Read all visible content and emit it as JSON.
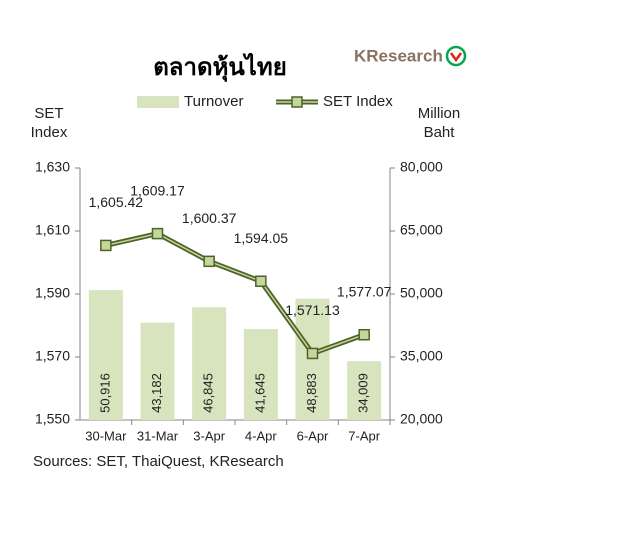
{
  "chart_data": {
    "type": "combo",
    "title": "ตลาดหุ้นไทย",
    "brand": "KResearch",
    "ylabel": "SET Index",
    "y2label": "Million Baht",
    "source": "Sources: SET, ThaiQuest, KResearch",
    "categories": [
      "30-Mar",
      "31-Mar",
      "3-Apr",
      "4-Apr",
      "6-Apr",
      "7-Apr"
    ],
    "series": [
      {
        "name": "Turnover",
        "type": "bar",
        "axis": "y2",
        "color": "#d7e4bd",
        "values": [
          50916,
          43182,
          46845,
          41645,
          48883,
          34009
        ],
        "value_labels": [
          "50,916",
          "43,182",
          "46,845",
          "41,645",
          "48,883",
          "34,009"
        ]
      },
      {
        "name": "SET Index",
        "type": "line",
        "color": "#4f6228",
        "marker_color": "#c3d69b",
        "values": [
          1605.42,
          1609.17,
          1600.37,
          1594.05,
          1571.13,
          1577.07
        ],
        "value_labels": [
          "1,605.42",
          "1,609.17",
          "1,600.37",
          "1,594.05",
          "1,571.13",
          "1,577.07"
        ]
      }
    ],
    "ylim": [
      1550,
      1630
    ],
    "yticks": [
      {
        "value": 1550,
        "label": "1,550"
      },
      {
        "value": 1570,
        "label": "1,570"
      },
      {
        "value": 1590,
        "label": "1,590"
      },
      {
        "value": 1610,
        "label": "1,610"
      },
      {
        "value": 1630,
        "label": "1,630"
      }
    ],
    "y2lim": [
      20000,
      80000
    ],
    "y2ticks": [
      {
        "value": 20000,
        "label": "20,000"
      },
      {
        "value": 35000,
        "label": "35,000"
      },
      {
        "value": 50000,
        "label": "50,000"
      },
      {
        "value": 65000,
        "label": "65,000"
      },
      {
        "value": 80000,
        "label": "80,000"
      }
    ],
    "grid": false
  }
}
